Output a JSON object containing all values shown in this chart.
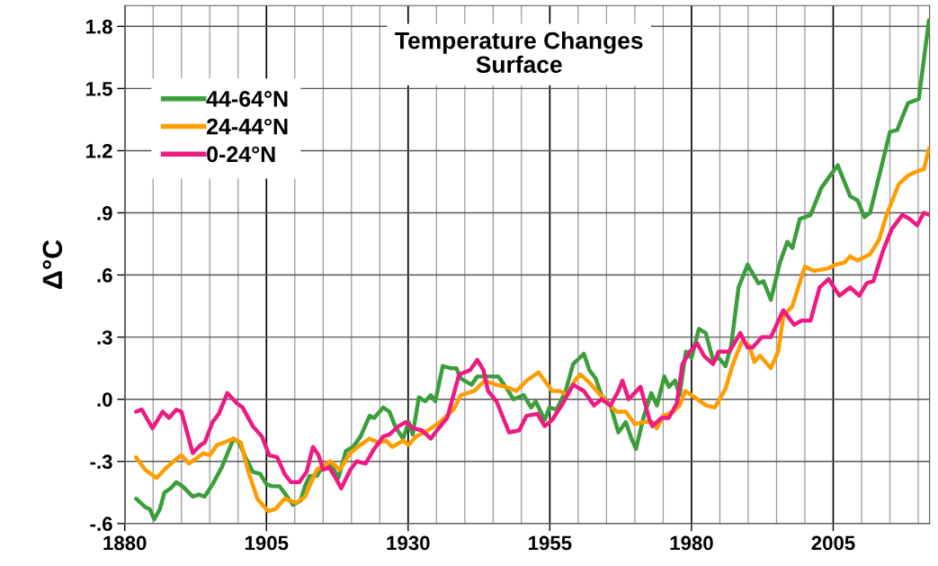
{
  "chart_data": {
    "type": "line",
    "title": "Temperature Changes\nSurface",
    "ylabel": "Δ°C",
    "xlim": [
      1880,
      2022
    ],
    "ylim": [
      -0.6,
      1.9
    ],
    "xticks": [
      1880,
      {
        "value": 1885,
        "label": null
      },
      {
        "value": 1890,
        "label": null
      },
      {
        "value": 1895,
        "label": null
      },
      {
        "value": 1900,
        "label": null
      },
      1905,
      {
        "value": 1910,
        "label": null
      },
      {
        "value": 1915,
        "label": null
      },
      {
        "value": 1920,
        "label": null
      },
      {
        "value": 1925,
        "label": null
      },
      1930,
      {
        "value": 1935,
        "label": null
      },
      {
        "value": 1940,
        "label": null
      },
      {
        "value": 1945,
        "label": null
      },
      {
        "value": 1950,
        "label": null
      },
      1955,
      {
        "value": 1960,
        "label": null
      },
      {
        "value": 1965,
        "label": null
      },
      {
        "value": 1970,
        "label": null
      },
      {
        "value": 1975,
        "label": null
      },
      1980,
      {
        "value": 1985,
        "label": null
      },
      {
        "value": 1990,
        "label": null
      },
      {
        "value": 1995,
        "label": null
      },
      {
        "value": 2000,
        "label": null
      },
      2005,
      {
        "value": 2010,
        "label": null
      },
      {
        "value": 2015,
        "label": null
      },
      {
        "value": 2020,
        "label": null
      }
    ],
    "yticks": [
      {
        "value": -0.6,
        "label": "-.6"
      },
      {
        "value": -0.3,
        "label": "-.3"
      },
      {
        "value": 0,
        "label": ".0"
      },
      {
        "value": 0.3,
        "label": ".3"
      },
      {
        "value": 0.6,
        "label": ".6"
      },
      {
        "value": 0.9,
        "label": ".9"
      },
      1.2,
      1.5,
      1.8
    ],
    "grid": true,
    "legend": "top left",
    "marker": "none",
    "line_style": "solid",
    "series": [
      {
        "name": "44-64°N",
        "color": "#3a9e3a",
        "x": [
          1882.0,
          1883.6,
          1884.4,
          1885.2,
          1886.2,
          1887.0,
          1888.1,
          1889.1,
          1890.2,
          1892.0,
          1893.1,
          1894.1,
          1895.5,
          1897.1,
          1899.2,
          1900.2,
          1901.3,
          1902.6,
          1903.9,
          1905.0,
          1906.0,
          1907.3,
          1908.4,
          1909.7,
          1911.0,
          1911.8,
          1912.6,
          1913.9,
          1915.0,
          1916.3,
          1917.7,
          1919.0,
          1920.3,
          1921.6,
          1923.2,
          1924.0,
          1925.6,
          1926.7,
          1927.7,
          1929.1,
          1930.1,
          1930.8,
          1931.9,
          1933.0,
          1934.0,
          1934.8,
          1936.1,
          1937.5,
          1938.5,
          1939.3,
          1941.2,
          1942.2,
          1944.1,
          1945.9,
          1947.2,
          1948.6,
          1950.4,
          1951.7,
          1952.5,
          1954.1,
          1954.9,
          1956.2,
          1957.8,
          1959.1,
          1959.9,
          1961.0,
          1962.0,
          1963.1,
          1964.1,
          1965.7,
          1967.1,
          1968.4,
          1969.4,
          1970.2,
          1971.5,
          1972.9,
          1973.9,
          1975.2,
          1976.0,
          1977.1,
          1977.9,
          1979.0,
          1980.0,
          1981.3,
          1982.5,
          1983.8,
          1984.8,
          1986.0,
          1987.0,
          1988.3,
          1989.9,
          1991.8,
          1992.7,
          1994.0,
          1995.6,
          1996.9,
          1997.8,
          1999.1,
          2001.0,
          2002.9,
          2004.2,
          2005.8,
          2008.0,
          2009.3,
          2010.5,
          2011.5,
          2013.4,
          2015.0,
          2016.3,
          2018.2,
          2020.1,
          2021.9
        ],
        "values": [
          -0.48,
          -0.52,
          -0.53,
          -0.58,
          -0.53,
          -0.45,
          -0.43,
          -0.4,
          -0.42,
          -0.47,
          -0.46,
          -0.47,
          -0.41,
          -0.33,
          -0.19,
          -0.21,
          -0.28,
          -0.35,
          -0.36,
          -0.41,
          -0.42,
          -0.42,
          -0.46,
          -0.51,
          -0.49,
          -0.42,
          -0.37,
          -0.37,
          -0.32,
          -0.31,
          -0.38,
          -0.25,
          -0.23,
          -0.18,
          -0.08,
          -0.09,
          -0.04,
          -0.06,
          -0.13,
          -0.19,
          -0.11,
          -0.17,
          0.01,
          -0.01,
          0.02,
          -0.01,
          0.16,
          0.15,
          0.15,
          0.1,
          0.07,
          0.11,
          0.11,
          0.11,
          0.06,
          0.0,
          0.02,
          -0.04,
          -0.01,
          -0.1,
          -0.04,
          -0.05,
          0.04,
          0.17,
          0.19,
          0.22,
          0.14,
          0.1,
          0.02,
          -0.03,
          -0.16,
          -0.11,
          -0.19,
          -0.24,
          -0.09,
          0.03,
          -0.03,
          0.11,
          0.06,
          0.09,
          0.02,
          0.23,
          0.2,
          0.34,
          0.32,
          0.19,
          0.2,
          0.16,
          0.26,
          0.54,
          0.65,
          0.56,
          0.57,
          0.48,
          0.66,
          0.76,
          0.73,
          0.87,
          0.89,
          1.02,
          1.07,
          1.13,
          0.98,
          0.96,
          0.88,
          0.9,
          1.11,
          1.29,
          1.3,
          1.43,
          1.45,
          1.83
        ]
      },
      {
        "name": "24-44°N",
        "color": "#ff9d00",
        "x": [
          1882.0,
          1883.6,
          1885.6,
          1887.0,
          1888.6,
          1890.0,
          1891.3,
          1892.4,
          1893.9,
          1895.0,
          1896.3,
          1897.4,
          1899.2,
          1900.5,
          1901.8,
          1903.4,
          1905.3,
          1906.6,
          1908.2,
          1910.3,
          1911.8,
          1913.9,
          1916.3,
          1917.9,
          1919.8,
          1921.6,
          1923.2,
          1924.8,
          1926.1,
          1927.2,
          1929.1,
          1930.1,
          1931.4,
          1933.5,
          1935.6,
          1938.0,
          1939.3,
          1941.7,
          1943.5,
          1945.6,
          1947.2,
          1949.1,
          1950.9,
          1953.0,
          1954.1,
          1955.4,
          1956.7,
          1958.1,
          1959.4,
          1960.4,
          1962.0,
          1963.6,
          1964.9,
          1966.8,
          1968.4,
          1970.0,
          1971.5,
          1973.1,
          1973.9,
          1975.0,
          1976.8,
          1977.9,
          1978.9,
          1980.5,
          1982.6,
          1984.1,
          1986.0,
          1987.3,
          1988.9,
          1990.2,
          1991.1,
          1992.1,
          1994.0,
          1995.3,
          1996.2,
          1997.8,
          2000.0,
          2001.6,
          2003.9,
          2005.4,
          2007.0,
          2008.0,
          2009.3,
          2011.5,
          2013.1,
          2014.4,
          2016.6,
          2018.2,
          2019.8,
          2021.0,
          2021.9
        ],
        "values": [
          -0.28,
          -0.34,
          -0.38,
          -0.34,
          -0.3,
          -0.27,
          -0.31,
          -0.29,
          -0.26,
          -0.27,
          -0.22,
          -0.21,
          -0.19,
          -0.21,
          -0.35,
          -0.48,
          -0.54,
          -0.53,
          -0.48,
          -0.5,
          -0.47,
          -0.34,
          -0.3,
          -0.34,
          -0.26,
          -0.22,
          -0.19,
          -0.21,
          -0.2,
          -0.23,
          -0.2,
          -0.22,
          -0.18,
          -0.15,
          -0.11,
          -0.05,
          0.02,
          0.04,
          0.09,
          0.07,
          0.06,
          0.04,
          0.09,
          0.13,
          0.09,
          0.04,
          0.04,
          0.02,
          0.09,
          0.12,
          0.08,
          0.03,
          -0.01,
          -0.06,
          -0.06,
          -0.12,
          -0.11,
          -0.11,
          -0.14,
          -0.08,
          -0.06,
          -0.03,
          0.04,
          0.01,
          -0.03,
          -0.04,
          0.05,
          0.17,
          0.28,
          0.26,
          0.18,
          0.21,
          0.15,
          0.23,
          0.4,
          0.45,
          0.64,
          0.62,
          0.63,
          0.65,
          0.66,
          0.69,
          0.67,
          0.7,
          0.77,
          0.89,
          1.04,
          1.08,
          1.1,
          1.11,
          1.21
        ]
      },
      {
        "name": "0-24°N",
        "color": "#ee1a82",
        "x": [
          1882.0,
          1883.0,
          1884.9,
          1886.7,
          1887.8,
          1889.1,
          1890.0,
          1891.3,
          1892.0,
          1893.4,
          1894.1,
          1895.5,
          1896.6,
          1898.1,
          1899.8,
          1900.8,
          1902.6,
          1904.2,
          1905.5,
          1906.9,
          1908.2,
          1909.3,
          1910.8,
          1912.1,
          1913.2,
          1914.2,
          1915.0,
          1916.1,
          1917.2,
          1918.2,
          1919.8,
          1920.9,
          1922.5,
          1924.0,
          1925.6,
          1926.7,
          1928.3,
          1929.6,
          1930.9,
          1932.4,
          1934.0,
          1935.1,
          1936.9,
          1939.0,
          1940.9,
          1942.2,
          1943.3,
          1944.1,
          1945.6,
          1947.8,
          1949.6,
          1950.9,
          1952.8,
          1954.1,
          1955.4,
          1957.3,
          1959.1,
          1961.0,
          1962.8,
          1964.1,
          1965.7,
          1967.1,
          1967.8,
          1968.9,
          1971.0,
          1972.6,
          1973.1,
          1974.7,
          1976.0,
          1977.4,
          1978.4,
          1979.7,
          1981.0,
          1982.2,
          1983.8,
          1984.8,
          1986.7,
          1988.6,
          1989.9,
          1990.8,
          1992.4,
          1994.0,
          1996.2,
          1998.1,
          1999.4,
          2001.0,
          2002.6,
          2004.2,
          2006.1,
          2008.0,
          2009.6,
          2010.9,
          2012.1,
          2013.7,
          2015.3,
          2017.2,
          2018.5,
          2019.8,
          2021.0,
          2021.9
        ],
        "values": [
          -0.06,
          -0.05,
          -0.14,
          -0.06,
          -0.09,
          -0.05,
          -0.06,
          -0.19,
          -0.26,
          -0.22,
          -0.21,
          -0.11,
          -0.07,
          0.03,
          -0.02,
          -0.04,
          -0.13,
          -0.18,
          -0.27,
          -0.28,
          -0.36,
          -0.4,
          -0.4,
          -0.35,
          -0.23,
          -0.27,
          -0.34,
          -0.33,
          -0.38,
          -0.43,
          -0.34,
          -0.3,
          -0.31,
          -0.24,
          -0.18,
          -0.17,
          -0.13,
          -0.11,
          -0.14,
          -0.15,
          -0.19,
          -0.15,
          -0.09,
          0.12,
          0.14,
          0.19,
          0.14,
          0.04,
          -0.01,
          -0.16,
          -0.15,
          -0.08,
          -0.07,
          -0.13,
          -0.1,
          -0.02,
          0.07,
          0.04,
          -0.03,
          0.0,
          -0.03,
          0.04,
          0.09,
          0.0,
          0.06,
          -0.1,
          -0.13,
          -0.09,
          -0.09,
          -0.02,
          0.17,
          0.23,
          0.27,
          0.21,
          0.17,
          0.23,
          0.23,
          0.32,
          0.25,
          0.25,
          0.3,
          0.3,
          0.43,
          0.36,
          0.38,
          0.38,
          0.54,
          0.58,
          0.5,
          0.54,
          0.5,
          0.56,
          0.57,
          0.71,
          0.82,
          0.89,
          0.87,
          0.84,
          0.9,
          0.89
        ]
      }
    ]
  }
}
